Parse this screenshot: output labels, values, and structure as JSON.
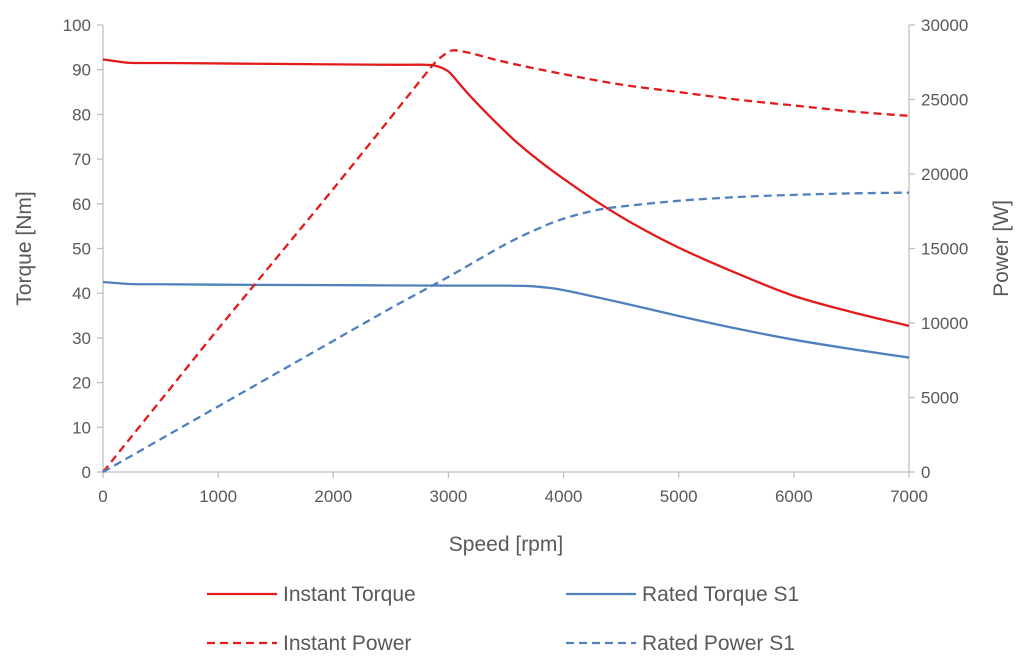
{
  "chart_data": {
    "type": "line",
    "title": "",
    "xlabel": "Speed [rpm]",
    "ylabel": "Torque [Nm]",
    "y2label": "Power [W]",
    "xlim": [
      0,
      7000
    ],
    "ylim": [
      0,
      100
    ],
    "y2lim": [
      0,
      30000
    ],
    "x_ticks": [
      "0",
      "1000",
      "2000",
      "3000",
      "4000",
      "5000",
      "6000",
      "7000"
    ],
    "y_ticks": [
      "0",
      "10",
      "20",
      "30",
      "40",
      "50",
      "60",
      "70",
      "80",
      "90",
      "100"
    ],
    "y2_ticks": [
      "0",
      "5000",
      "10000",
      "15000",
      "20000",
      "25000",
      "30000"
    ],
    "grid": false,
    "legend_position": "bottom",
    "series": [
      {
        "name": "Instant Torque",
        "axis": "left",
        "color": "#e31a1c",
        "style": "solid",
        "x": [
          0,
          200,
          300,
          500,
          1000,
          1500,
          2000,
          2500,
          2800,
          2900,
          3000,
          3100,
          3200,
          3400,
          3600,
          3800,
          4000,
          4300,
          4600,
          5000,
          5500,
          6000,
          6500,
          7000
        ],
        "y": [
          92.3,
          91.6,
          91.5,
          91.5,
          91.4,
          91.3,
          91.2,
          91.1,
          91.1,
          90.8,
          89.6,
          86.7,
          83.8,
          78.5,
          73.6,
          69.4,
          65.6,
          60.3,
          55.6,
          50.2,
          44.5,
          39.4,
          35.8,
          32.7
        ]
      },
      {
        "name": "Rated Torque S1",
        "axis": "left",
        "color": "#4f81bd",
        "style": "solid",
        "x": [
          0,
          200,
          300,
          500,
          1000,
          2000,
          3000,
          3500,
          3700,
          3800,
          4000,
          4500,
          5000,
          5500,
          6000,
          6500,
          7000
        ],
        "y": [
          42.5,
          42.1,
          42.0,
          42.0,
          41.9,
          41.8,
          41.7,
          41.7,
          41.6,
          41.4,
          40.7,
          37.9,
          34.9,
          32.1,
          29.6,
          27.5,
          25.6
        ]
      },
      {
        "name": "Instant Power",
        "axis": "right",
        "color": "#e31a1c",
        "style": "dashed",
        "x": [
          0,
          500,
          1000,
          1500,
          2000,
          2500,
          2800,
          2900,
          3000,
          3050,
          3100,
          3200,
          3500,
          4000,
          4500,
          5000,
          5500,
          6000,
          6500,
          7000
        ],
        "y": [
          0,
          4800,
          9600,
          14300,
          19000,
          23800,
          26700,
          27600,
          28200,
          28300,
          28250,
          28100,
          27500,
          26700,
          26000,
          25500,
          25000,
          24600,
          24200,
          23900
        ]
      },
      {
        "name": "Rated Power S1",
        "axis": "right",
        "color": "#4f81bd",
        "style": "dashed",
        "x": [
          0,
          500,
          1000,
          1500,
          2000,
          2500,
          3000,
          3500,
          3800,
          4000,
          4300,
          4600,
          5000,
          5500,
          6000,
          6500,
          7000
        ],
        "y": [
          0,
          2200,
          4400,
          6600,
          8800,
          11000,
          13100,
          15300,
          16400,
          17000,
          17600,
          17900,
          18200,
          18450,
          18600,
          18700,
          18750
        ]
      }
    ]
  }
}
